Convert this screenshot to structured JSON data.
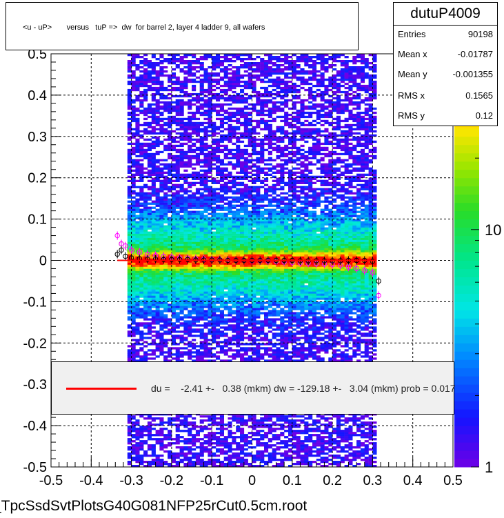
{
  "title": "<u - uP>       versus   tuP =>  dw  for barrel 2, layer 4 ladder 9, all wafers",
  "stats": {
    "name": "dutuP4009",
    "rows": [
      {
        "label": "Entries",
        "value": "90198"
      },
      {
        "label": "Mean x",
        "value": "-0.01787"
      },
      {
        "label": "Mean y",
        "value": "-0.001355"
      },
      {
        "label": "RMS x",
        "value": "0.1565"
      },
      {
        "label": "RMS y",
        "value": "0.12"
      }
    ]
  },
  "legend": {
    "text": "du =    -2.41 +-   0.38 (mkm) dw = -129.18 +-   3.04 (mkm) prob = 0.017",
    "line_color": "#ff0000"
  },
  "footer": "_TpcSsdSvtPlotsG40G081NFP25rCut0.5cm.root",
  "chart_data": {
    "type": "heatmap",
    "xlim": [
      -0.5,
      0.5
    ],
    "ylim": [
      -0.5,
      0.5
    ],
    "x_ticks": [
      "-0.5",
      "-0.4",
      "-0.3",
      "-0.2",
      "-0.1",
      "0",
      "0.1",
      "0.2",
      "0.3",
      "0.4",
      "0.5"
    ],
    "y_ticks": [
      "-0.5",
      "-0.4",
      "-0.3",
      "-0.2",
      "-0.1",
      "0",
      "0.1",
      "0.2",
      "0.3",
      "0.4",
      "0.5"
    ],
    "z_scale": "log",
    "z_ticks": [
      "1",
      "10"
    ],
    "z_tick_values": [
      1,
      10
    ],
    "z_partial_label": "0",
    "z_max": 55,
    "grid": true,
    "populated_x_range": [
      -0.31,
      0.31
    ],
    "band_center_y": 0.0,
    "fit_line": {
      "color": "#ff0000",
      "x": [
        -0.335,
        0.31
      ],
      "y": [
        0.0,
        0.0
      ]
    },
    "profile_black": {
      "x": [
        -0.335,
        -0.325,
        -0.315,
        -0.3,
        -0.28,
        -0.26,
        -0.24,
        -0.22,
        -0.2,
        -0.18,
        -0.16,
        -0.14,
        -0.12,
        -0.1,
        -0.08,
        -0.06,
        -0.04,
        -0.02,
        0.0,
        0.02,
        0.04,
        0.06,
        0.08,
        0.1,
        0.12,
        0.14,
        0.16,
        0.18,
        0.2,
        0.22,
        0.24,
        0.26,
        0.28,
        0.3,
        0.315
      ],
      "y": [
        0.015,
        0.025,
        0.01,
        0.006,
        0.004,
        0.003,
        0.003,
        0.002,
        0.002,
        0.002,
        0.002,
        0.001,
        0.001,
        0.001,
        0.001,
        0.0,
        0.0,
        0.0,
        0.0,
        0.0,
        0.0,
        0.0,
        0.0,
        0.0,
        -0.001,
        -0.001,
        -0.001,
        -0.001,
        -0.001,
        -0.001,
        0.0,
        0.0,
        0.0,
        -0.002,
        -0.05
      ]
    },
    "profile_pink": {
      "x": [
        -0.335,
        -0.325,
        -0.315,
        -0.3,
        -0.28,
        -0.26,
        -0.24,
        -0.22,
        -0.2,
        -0.18,
        -0.16,
        -0.14,
        -0.12,
        -0.1,
        -0.08,
        -0.06,
        -0.04,
        -0.02,
        0.0,
        0.02,
        0.04,
        0.06,
        0.08,
        0.1,
        0.12,
        0.14,
        0.16,
        0.18,
        0.2,
        0.22,
        0.24,
        0.26,
        0.28,
        0.3,
        0.315
      ],
      "y": [
        0.06,
        0.04,
        0.035,
        0.025,
        0.02,
        0.015,
        0.012,
        0.01,
        0.008,
        0.006,
        0.005,
        0.004,
        0.003,
        0.002,
        0.002,
        0.001,
        0.0,
        0.0,
        -0.001,
        -0.001,
        -0.002,
        -0.003,
        -0.004,
        -0.005,
        -0.006,
        -0.007,
        -0.008,
        -0.009,
        -0.01,
        -0.012,
        -0.016,
        -0.02,
        -0.025,
        -0.03,
        -0.085
      ]
    },
    "profile_green": {
      "x": [
        -0.325,
        -0.31,
        -0.295,
        -0.28,
        -0.26,
        -0.24,
        -0.22,
        -0.2,
        -0.18,
        -0.16,
        -0.14,
        -0.12,
        -0.1,
        -0.08,
        -0.06,
        -0.04,
        -0.02,
        0.0,
        0.02,
        0.04,
        0.06,
        0.08,
        0.1,
        0.12,
        0.14,
        0.16,
        0.18,
        0.2,
        0.22,
        0.24,
        0.26,
        0.28,
        0.3
      ],
      "y": [
        0.04,
        0.03,
        0.022,
        0.018,
        0.014,
        0.011,
        0.009,
        0.007,
        0.006,
        0.005,
        0.004,
        0.003,
        0.002,
        0.001,
        0.001,
        0.0,
        0.0,
        0.0,
        -0.001,
        -0.001,
        -0.002,
        -0.003,
        -0.004,
        -0.005,
        -0.006,
        -0.007,
        -0.008,
        -0.01,
        -0.012,
        -0.014,
        -0.018,
        -0.022,
        -0.026
      ]
    }
  }
}
